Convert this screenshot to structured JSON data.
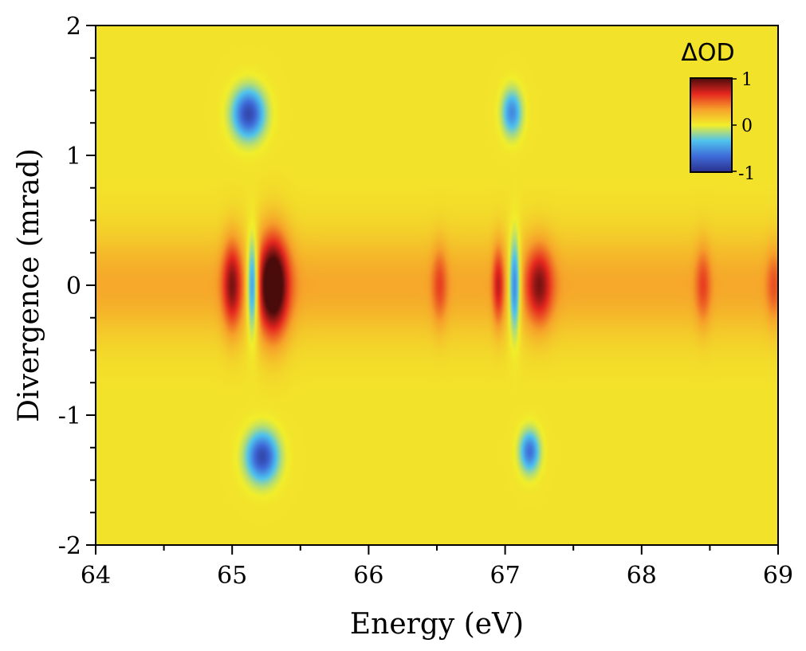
{
  "chart_data": {
    "type": "heatmap",
    "title": "",
    "xlabel": "Energy (eV)",
    "ylabel": "Divergence (mrad)",
    "xlim": [
      64,
      69
    ],
    "ylim": [
      -2,
      2
    ],
    "xticks": [
      64,
      65,
      66,
      67,
      68,
      69
    ],
    "yticks": [
      -2,
      -1,
      0,
      1,
      2
    ],
    "xtick_labels": [
      "64",
      "65",
      "66",
      "67",
      "68",
      "69"
    ],
    "ytick_labels": [
      "-2",
      "-1",
      "0",
      "1",
      "2"
    ],
    "colorbar": {
      "title": "ΔOD",
      "range": [
        -1,
        1
      ],
      "ticks": [
        "1",
        "0",
        "-1"
      ],
      "colors": [
        "#2b2f8c",
        "#3e6ad8",
        "#4fc3ee",
        "#f2ee2a",
        "#f6a12a",
        "#e5261f",
        "#4a0b0b"
      ],
      "position": "top-right"
    },
    "background_color": "#7cc49a",
    "background_value": 0.05,
    "features": [
      {
        "energy": 65.0,
        "divergence": 0.0,
        "value": 0.6,
        "energy_width": 0.05,
        "divergence_width": 0.25
      },
      {
        "energy": 65.15,
        "divergence": 0.0,
        "value": -0.9,
        "energy_width": 0.03,
        "divergence_width": 0.25
      },
      {
        "energy": 65.3,
        "divergence": 0.0,
        "value": 1.0,
        "energy_width": 0.08,
        "divergence_width": 0.28
      },
      {
        "energy": 65.12,
        "divergence": 1.32,
        "value": -0.9,
        "energy_width": 0.08,
        "divergence_width": 0.13
      },
      {
        "energy": 65.22,
        "divergence": -1.32,
        "value": -0.9,
        "energy_width": 0.08,
        "divergence_width": 0.13
      },
      {
        "energy": 66.52,
        "divergence": 0.0,
        "value": 0.3,
        "energy_width": 0.04,
        "divergence_width": 0.22
      },
      {
        "energy": 66.95,
        "divergence": 0.0,
        "value": 0.45,
        "energy_width": 0.03,
        "divergence_width": 0.22
      },
      {
        "energy": 67.07,
        "divergence": 0.0,
        "value": -0.85,
        "energy_width": 0.03,
        "divergence_width": 0.25
      },
      {
        "energy": 67.25,
        "divergence": 0.0,
        "value": 0.6,
        "energy_width": 0.07,
        "divergence_width": 0.22
      },
      {
        "energy": 67.05,
        "divergence": 1.33,
        "value": -0.6,
        "energy_width": 0.05,
        "divergence_width": 0.12
      },
      {
        "energy": 67.18,
        "divergence": -1.28,
        "value": -0.7,
        "energy_width": 0.05,
        "divergence_width": 0.11
      },
      {
        "energy": 68.45,
        "divergence": 0.0,
        "value": 0.3,
        "energy_width": 0.04,
        "divergence_width": 0.22
      },
      {
        "energy": 68.97,
        "divergence": 0.0,
        "value": 0.25,
        "energy_width": 0.04,
        "divergence_width": 0.2
      }
    ],
    "band": {
      "divergence": 0.0,
      "value": 0.25,
      "divergence_width": 0.28
    }
  }
}
